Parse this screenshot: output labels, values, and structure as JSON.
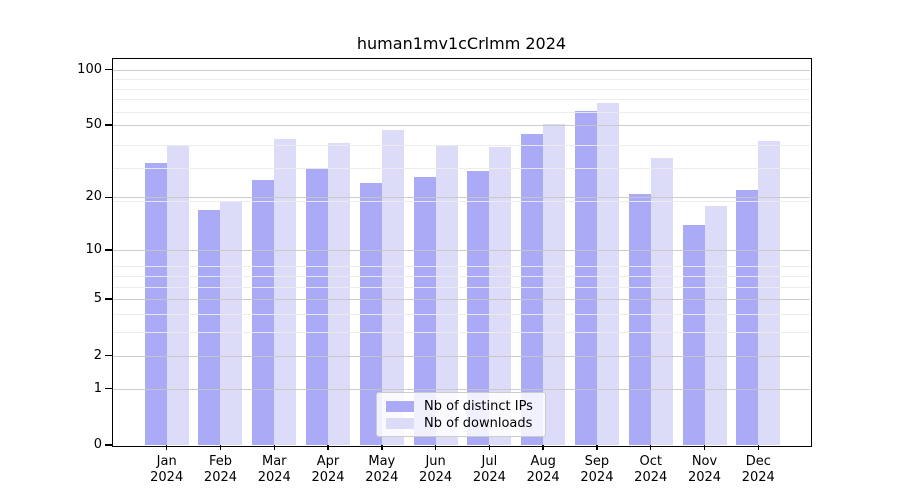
{
  "chart_data": {
    "type": "bar",
    "title": "human1mv1cCrlmm 2024",
    "year": "2024",
    "categories": [
      "Jan",
      "Feb",
      "Mar",
      "Apr",
      "May",
      "Jun",
      "Jul",
      "Aug",
      "Sep",
      "Oct",
      "Nov",
      "Dec"
    ],
    "series": [
      {
        "name": "Nb of distinct IPs",
        "color": "#aaaaf7",
        "values": [
          31,
          17,
          25,
          29,
          24,
          26,
          28,
          45,
          60,
          21,
          14,
          22
        ]
      },
      {
        "name": "Nb of downloads",
        "color": "#dcdcf8",
        "values": [
          39,
          19,
          42,
          40,
          47,
          39,
          38,
          51,
          66,
          33,
          18,
          41
        ]
      }
    ],
    "yticks": [
      0,
      1,
      2,
      5,
      10,
      20,
      50,
      100
    ],
    "ylim": [
      0,
      114
    ],
    "scale": "log10(1+x)",
    "grid": "horizontal major+minor",
    "legend_position": "lower center",
    "frame_color": "#000000",
    "background_color": "#ffffff"
  }
}
